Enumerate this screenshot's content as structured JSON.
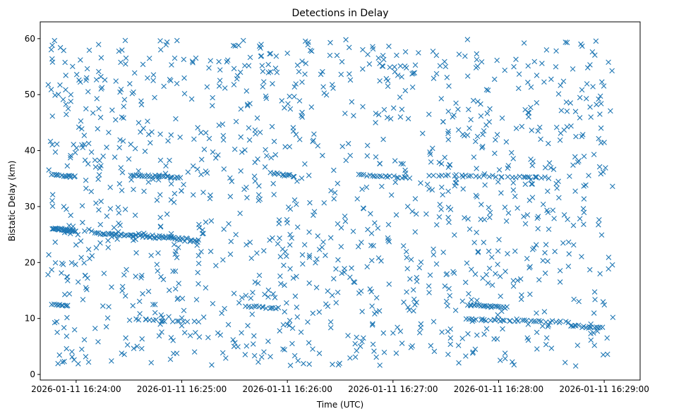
{
  "colors": {
    "marker": "#1f77b4",
    "axis": "#000000",
    "background": "#ffffff"
  },
  "chart_data": {
    "type": "scatter",
    "title": "Detections in Delay",
    "xlabel": "Time (UTC)",
    "ylabel": "Bistatic Delay (km)",
    "x_unit": "seconds after 2026-01-11 16:24:00",
    "xlim": [
      -20.4,
      320.4
    ],
    "ylim": [
      -1.0,
      63.0
    ],
    "x_ticks": [
      0,
      60,
      120,
      180,
      240,
      300
    ],
    "x_tick_labels": [
      "2026-01-11 16:24:00",
      "2026-01-11 16:25:00",
      "2026-01-11 16:26:00",
      "2026-01-11 16:27:00",
      "2026-01-11 16:28:00",
      "2026-01-11 16:29:00"
    ],
    "y_ticks": [
      0,
      10,
      20,
      30,
      40,
      50,
      60
    ],
    "y_tick_labels": [
      "0",
      "10",
      "20",
      "30",
      "40",
      "50",
      "60"
    ],
    "marker": "x",
    "data_range": {
      "x": [
        -16,
        305
      ],
      "y": [
        1.5,
        59.9
      ]
    },
    "clusters": [
      {
        "name": "band-26km",
        "x_range": [
          -14,
          0
        ],
        "y_range": [
          25.5,
          26.3
        ],
        "count": 26
      },
      {
        "name": "band-25km",
        "x_range": [
          10,
          35
        ],
        "y_range": [
          24.6,
          25.4
        ],
        "count": 24
      },
      {
        "name": "band-24km",
        "x_range": [
          35,
          70
        ],
        "y_range": [
          23.6,
          25.2
        ],
        "count": 40
      },
      {
        "name": "band-35km-a",
        "x_range": [
          -14,
          0
        ],
        "y_range": [
          35.2,
          35.8
        ],
        "count": 14
      },
      {
        "name": "band-35km-b",
        "x_range": [
          30,
          60
        ],
        "y_range": [
          35.0,
          35.8
        ],
        "count": 26
      },
      {
        "name": "band-35km-c",
        "x_range": [
          110,
          125
        ],
        "y_range": [
          35.2,
          36.2
        ],
        "count": 12
      },
      {
        "name": "band-35km-d",
        "x_range": [
          160,
          190
        ],
        "y_range": [
          35.0,
          35.8
        ],
        "count": 20
      },
      {
        "name": "band-35km-e",
        "x_range": [
          200,
          270
        ],
        "y_range": [
          35.0,
          35.8
        ],
        "count": 32
      },
      {
        "name": "band-12km-a",
        "x_range": [
          -14,
          -4
        ],
        "y_range": [
          12.2,
          12.6
        ],
        "count": 10
      },
      {
        "name": "band-12km-b",
        "x_range": [
          96,
          116
        ],
        "y_range": [
          11.6,
          12.4
        ],
        "count": 14
      },
      {
        "name": "band-12km-c",
        "x_range": [
          222,
          245
        ],
        "y_range": [
          11.8,
          12.6
        ],
        "count": 22
      },
      {
        "name": "band-9-10km-a",
        "x_range": [
          220,
          280
        ],
        "y_range": [
          9.2,
          10.0
        ],
        "count": 34
      },
      {
        "name": "band-9-10km-b",
        "x_range": [
          30,
          70
        ],
        "y_range": [
          9.2,
          10.0
        ],
        "count": 16
      },
      {
        "name": "band-8km",
        "x_range": [
          280,
          300
        ],
        "y_range": [
          8.0,
          9.0
        ],
        "count": 16
      }
    ],
    "background_noise_count": 1250,
    "seed": 20260111
  }
}
